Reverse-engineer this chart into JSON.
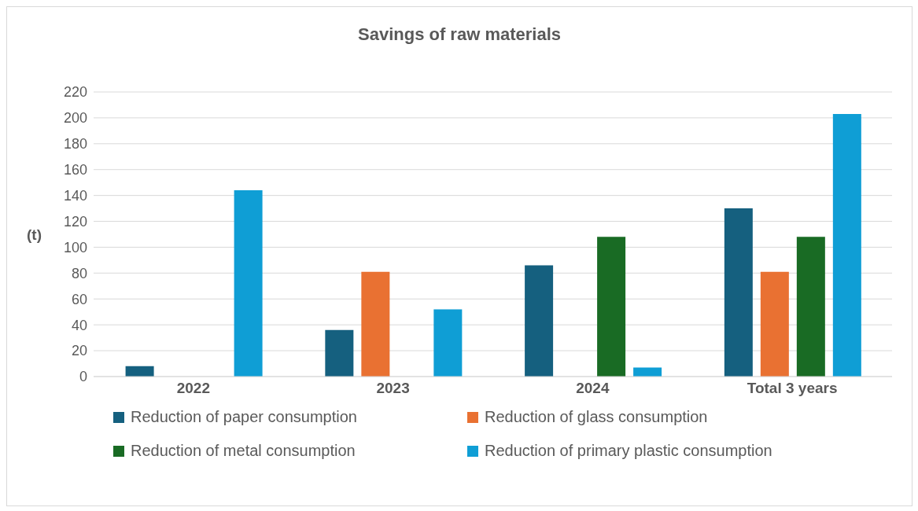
{
  "chart_data": {
    "type": "bar",
    "title": "Savings of raw materials",
    "ylabel": "(t)",
    "categories": [
      "2022",
      "2023",
      "2024",
      "Total 3 years"
    ],
    "series": [
      {
        "name": "Reduction of paper consumption",
        "color": "#15607f",
        "values": [
          8,
          36,
          86,
          130
        ]
      },
      {
        "name": "Reduction of glass consumption",
        "color": "#e97132",
        "values": [
          null,
          81,
          null,
          81
        ]
      },
      {
        "name": "Reduction of metal consumption",
        "color": "#196b24",
        "values": [
          null,
          null,
          108,
          108
        ]
      },
      {
        "name": "Reduction of primary plastic consumption",
        "color": "#0f9ed5",
        "values": [
          144,
          52,
          7,
          203
        ]
      }
    ],
    "ylim": [
      0,
      220
    ],
    "yticks": [
      0,
      20,
      40,
      60,
      80,
      100,
      120,
      140,
      160,
      180,
      200,
      220
    ],
    "grid": "y",
    "legend": "bottom"
  }
}
